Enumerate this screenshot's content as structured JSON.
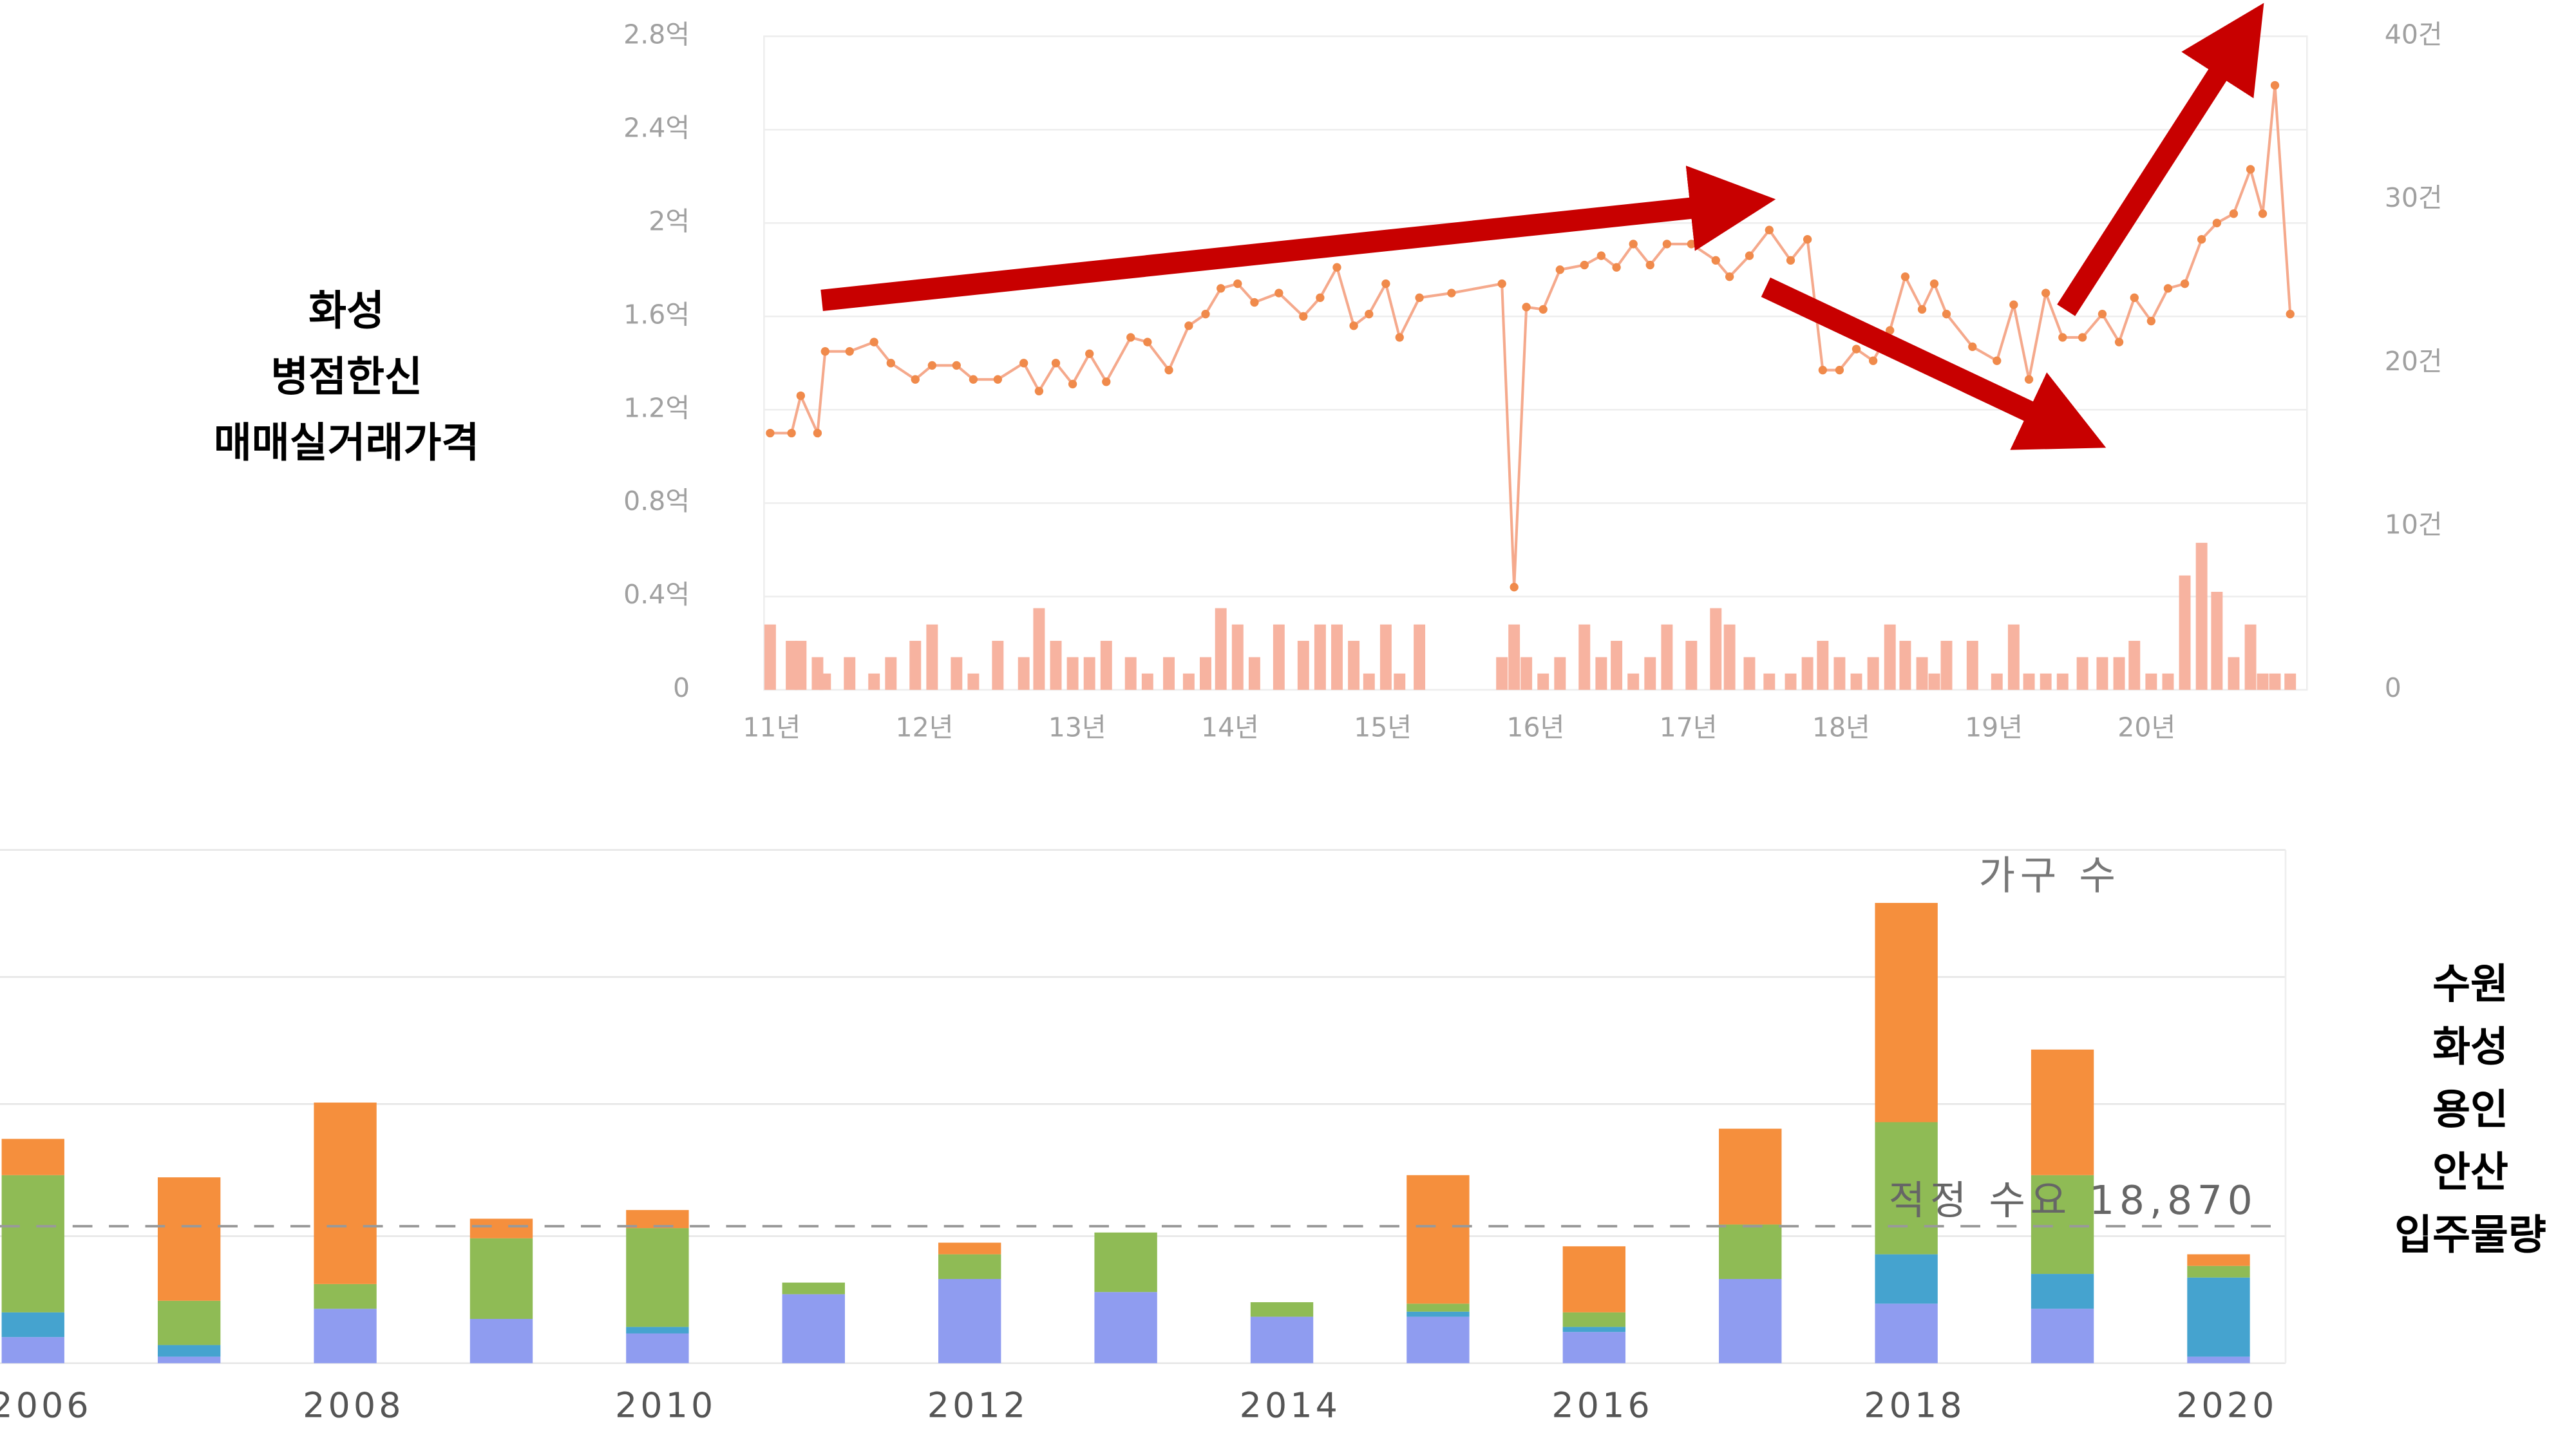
{
  "annotations": {
    "left": [
      "화성",
      "병점한신",
      "매매실거래가격"
    ],
    "right": [
      "수원",
      "화성",
      "용인",
      "안산",
      "입주물량"
    ]
  },
  "chart_data": [
    {
      "type": "line",
      "x": [
        2010.99,
        2011.13,
        2011.19,
        2011.3,
        2011.35,
        2011.51,
        2011.67,
        2011.78,
        2011.94,
        2012.05,
        2012.21,
        2012.32,
        2012.48,
        2012.65,
        2012.75,
        2012.86,
        2012.97,
        2013.08,
        2013.19,
        2013.35,
        2013.46,
        2013.6,
        2013.73,
        2013.84,
        2013.94,
        2014.05,
        2014.16,
        2014.32,
        2014.48,
        2014.59,
        2014.7,
        2014.81,
        2014.91,
        2015.02,
        2015.11,
        2015.24,
        2015.45,
        2015.78,
        2015.86,
        2015.94,
        2016.05,
        2016.16,
        2016.32,
        2016.43,
        2016.53,
        2016.64,
        2016.75,
        2016.86,
        2017.02,
        2017.18,
        2017.27,
        2017.4,
        2017.53,
        2017.67,
        2017.78,
        2017.88,
        2017.99,
        2018.1,
        2018.21,
        2018.32,
        2018.42,
        2018.53,
        2018.61,
        2018.69,
        2018.86,
        2019.02,
        2019.13,
        2019.23,
        2019.34,
        2019.45,
        2019.58,
        2019.71,
        2019.82,
        2019.92,
        2020.03,
        2020.14,
        2020.25,
        2020.36,
        2020.46,
        2020.57,
        2020.68,
        2020.76,
        2020.84,
        2020.94
      ],
      "xlim": [
        2010.95,
        2021.05
      ],
      "xticks": [
        {
          "value": 2011,
          "label": "11년"
        },
        {
          "value": 2012,
          "label": "12년"
        },
        {
          "value": 2013,
          "label": "13년"
        },
        {
          "value": 2014,
          "label": "14년"
        },
        {
          "value": 2015,
          "label": "15년"
        },
        {
          "value": 2016,
          "label": "16년"
        },
        {
          "value": 2017,
          "label": "17년"
        },
        {
          "value": 2018,
          "label": "18년"
        },
        {
          "value": 2019,
          "label": "19년"
        },
        {
          "value": 2020,
          "label": "20년"
        }
      ],
      "ylim": [
        0,
        2.8
      ],
      "yticks": [
        0,
        {
          "value": 0.4,
          "label": "0.4억"
        },
        {
          "value": 0.8,
          "label": "0.8억"
        },
        {
          "value": 1.2,
          "label": "1.2억"
        },
        {
          "value": 1.6,
          "label": "1.6억"
        },
        {
          "value": 2,
          "label": "2억"
        },
        {
          "value": 2.4,
          "label": "2.4억"
        },
        {
          "value": 2.8,
          "label": "2.8억"
        }
      ],
      "y2lim": [
        0,
        40
      ],
      "y2ticks": [
        0,
        {
          "value": 10,
          "label": "10건"
        },
        {
          "value": 20,
          "label": "20건"
        },
        {
          "value": 30,
          "label": "30건"
        },
        {
          "value": 40,
          "label": "40건"
        }
      ],
      "grid": true,
      "series": [
        {
          "type": "line",
          "color": "#f5a98c",
          "marker_color": "#f08a4b",
          "values": [
            1.1,
            1.1,
            1.26,
            1.1,
            1.45,
            1.45,
            1.49,
            1.4,
            1.33,
            1.39,
            1.39,
            1.33,
            1.33,
            1.4,
            1.28,
            1.4,
            1.31,
            1.44,
            1.32,
            1.51,
            1.49,
            1.37,
            1.56,
            1.61,
            1.72,
            1.74,
            1.66,
            1.7,
            1.6,
            1.68,
            1.81,
            1.56,
            1.61,
            1.74,
            1.51,
            1.68,
            1.7,
            1.74,
            0.44,
            1.64,
            1.63,
            1.8,
            1.82,
            1.86,
            1.81,
            1.91,
            1.82,
            1.91,
            1.91,
            1.84,
            1.77,
            1.86,
            1.97,
            1.84,
            1.93,
            1.37,
            1.37,
            1.46,
            1.41,
            1.54,
            1.77,
            1.63,
            1.74,
            1.61,
            1.47,
            1.41,
            1.65,
            1.33,
            1.7,
            1.51,
            1.51,
            1.61,
            1.49,
            1.68,
            1.58,
            1.72,
            1.74,
            1.93,
            2.0,
            2.04,
            2.23,
            2.04,
            2.59,
            1.61
          ]
        },
        {
          "type": "bar",
          "axis": "y2",
          "color": "#f7b3a0",
          "values": [
            4,
            3,
            3,
            2,
            1,
            2,
            1,
            2,
            3,
            4,
            2,
            1,
            3,
            2,
            5,
            3,
            2,
            2,
            3,
            2,
            1,
            2,
            1,
            2,
            5,
            4,
            2,
            4,
            3,
            4,
            4,
            3,
            1,
            4,
            1,
            4,
            0,
            2,
            4,
            2,
            1,
            2,
            4,
            2,
            3,
            1,
            2,
            4,
            3,
            5,
            4,
            2,
            1,
            1,
            2,
            3,
            2,
            1,
            2,
            4,
            3,
            2,
            1,
            3,
            3,
            1,
            4,
            1,
            1,
            1,
            2,
            2,
            2,
            3,
            1,
            1,
            7,
            9,
            6,
            2,
            4,
            1,
            1,
            1
          ]
        }
      ]
    },
    {
      "type": "stacked_bar",
      "categories": [
        "2006",
        null,
        "2008",
        null,
        "2010",
        null,
        "2012",
        null,
        "2014",
        null,
        "2016",
        null,
        "2018",
        null,
        "2020"
      ],
      "ylim": [
        0,
        70700
      ],
      "gridlines": [
        0,
        17500,
        35700,
        53200,
        70700
      ],
      "axis_title": "가구 수",
      "reference": {
        "value": 18870,
        "label": "적정 수요 18,870"
      },
      "series": [
        {
          "color": "#8f9cf0",
          "values": [
            3600,
            900,
            7500,
            6100,
            4100,
            9500,
            11600,
            9800,
            6400,
            6400,
            4300,
            11600,
            8200,
            7500,
            900
          ]
        },
        {
          "color": "#45a3cf",
          "values": [
            3400,
            1600,
            0,
            0,
            900,
            0,
            0,
            0,
            0,
            700,
            700,
            0,
            6800,
            4800,
            10900
          ]
        },
        {
          "color": "#8fbb55",
          "values": [
            18900,
            6100,
            3400,
            11100,
            13600,
            1600,
            3400,
            8200,
            2000,
            1100,
            2000,
            7500,
            18200,
            13600,
            1600
          ]
        },
        {
          "color": "#f58f3d",
          "values": [
            5000,
            17000,
            25000,
            2700,
            2500,
            0,
            1600,
            0,
            0,
            17700,
            9100,
            13200,
            30200,
            17300,
            1600
          ]
        }
      ]
    }
  ]
}
